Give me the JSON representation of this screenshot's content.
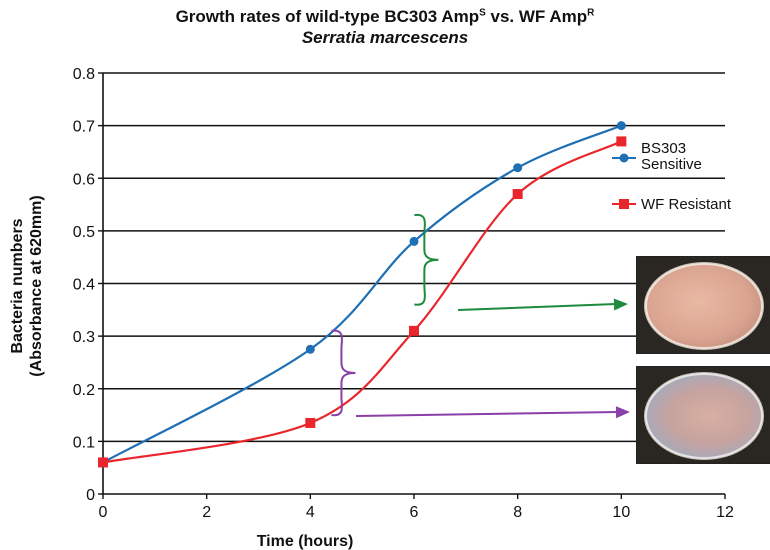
{
  "title": {
    "line1_prefix": "Growth rates of wild-type BC303 Amp",
    "line1_sup1": "S",
    "line1_middle": " vs. WF Amp",
    "line1_sup2": "R",
    "line2": "Serratia marcescens"
  },
  "chart_data": {
    "type": "line",
    "xlabel": "Time (hours)",
    "ylabel": [
      "Bacteria numbers",
      "(Absorbance at 620mm)"
    ],
    "xlim": [
      0,
      12
    ],
    "ylim": [
      0,
      0.8
    ],
    "xticks": [
      0,
      2,
      4,
      6,
      8,
      10,
      12
    ],
    "yticks": [
      0,
      0.1,
      0.2,
      0.3,
      0.4,
      0.5,
      0.6,
      0.7,
      0.8
    ],
    "ytick_labels": [
      "0",
      "0.1",
      "0.2",
      "0.3",
      "0.4",
      "0.5",
      "0.6",
      "0.7",
      "0.8"
    ],
    "grid": "horizontal",
    "legend_position": "right",
    "series": [
      {
        "name": "BS303 Sensitive",
        "legend_lines": [
          "BS303",
          "Sensitive"
        ],
        "color": "#1f6fb5",
        "marker": "circle",
        "x": [
          0,
          4,
          6,
          8,
          10
        ],
        "y": [
          0.06,
          0.275,
          0.48,
          0.62,
          0.7
        ]
      },
      {
        "name": "WF Resistant",
        "legend_lines": [
          "WF Resistant"
        ],
        "color": "#e8262b",
        "marker": "square",
        "x": [
          0,
          4,
          6,
          8,
          10
        ],
        "y": [
          0.06,
          0.135,
          0.31,
          0.57,
          0.67
        ]
      }
    ],
    "annotations": [
      {
        "type": "brace",
        "x": 6.2,
        "y_range": [
          0.36,
          0.53
        ],
        "color": "#1e8a3c"
      },
      {
        "type": "brace",
        "x": 4.6,
        "y_range": [
          0.15,
          0.31
        ],
        "color": "#8b3fa8"
      },
      {
        "type": "arrow",
        "color": "#1e8a3c",
        "target": "top plate photo"
      },
      {
        "type": "arrow",
        "color": "#8b3fa8",
        "target": "bottom plate photo"
      }
    ]
  },
  "photos": [
    {
      "name": "agar plate photo top"
    },
    {
      "name": "agar plate photo bottom"
    }
  ]
}
